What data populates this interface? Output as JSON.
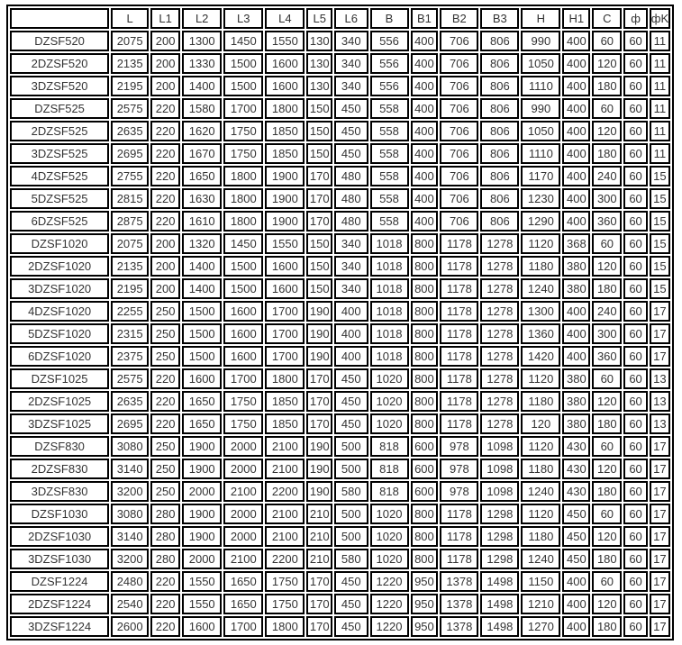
{
  "accent_colors": {
    "border": "#000000",
    "text": "#333333",
    "background": "#ffffff"
  },
  "chart_data": {
    "type": "table",
    "title": "",
    "columns": [
      "",
      "L",
      "L1",
      "L2",
      "L3",
      "L4",
      "L5",
      "L6",
      "B",
      "B1",
      "B2",
      "B3",
      "H",
      "H1",
      "C",
      "ф",
      "фK"
    ],
    "rows": [
      [
        "DZSF520",
        "2075",
        "200",
        "1300",
        "1450",
        "1550",
        "130",
        "340",
        "556",
        "400",
        "706",
        "806",
        "990",
        "400",
        "60",
        "60",
        "11"
      ],
      [
        "2DZSF520",
        "2135",
        "200",
        "1330",
        "1500",
        "1600",
        "130",
        "340",
        "556",
        "400",
        "706",
        "806",
        "1050",
        "400",
        "120",
        "60",
        "11"
      ],
      [
        "3DZSF520",
        "2195",
        "200",
        "1400",
        "1500",
        "1600",
        "130",
        "340",
        "556",
        "400",
        "706",
        "806",
        "1110",
        "400",
        "180",
        "60",
        "11"
      ],
      [
        "DZSF525",
        "2575",
        "220",
        "1580",
        "1700",
        "1800",
        "150",
        "450",
        "558",
        "400",
        "706",
        "806",
        "990",
        "400",
        "60",
        "60",
        "11"
      ],
      [
        "2DZSF525",
        "2635",
        "220",
        "1620",
        "1750",
        "1850",
        "150",
        "450",
        "558",
        "400",
        "706",
        "806",
        "1050",
        "400",
        "120",
        "60",
        "11"
      ],
      [
        "3DZSF525",
        "2695",
        "220",
        "1670",
        "1750",
        "1850",
        "150",
        "450",
        "558",
        "400",
        "706",
        "806",
        "1110",
        "400",
        "180",
        "60",
        "11"
      ],
      [
        "4DZSF525",
        "2755",
        "220",
        "1650",
        "1800",
        "1900",
        "170",
        "480",
        "558",
        "400",
        "706",
        "806",
        "1170",
        "400",
        "240",
        "60",
        "15"
      ],
      [
        "5DZSF525",
        "2815",
        "220",
        "1630",
        "1800",
        "1900",
        "170",
        "480",
        "558",
        "400",
        "706",
        "806",
        "1230",
        "400",
        "300",
        "60",
        "15"
      ],
      [
        "6DZSF525",
        "2875",
        "220",
        "1610",
        "1800",
        "1900",
        "170",
        "480",
        "558",
        "400",
        "706",
        "806",
        "1290",
        "400",
        "360",
        "60",
        "15"
      ],
      [
        "DZSF1020",
        "2075",
        "200",
        "1320",
        "1450",
        "1550",
        "150",
        "340",
        "1018",
        "800",
        "1178",
        "1278",
        "1120",
        "368",
        "60",
        "60",
        "15"
      ],
      [
        "2DZSF1020",
        "2135",
        "200",
        "1400",
        "1500",
        "1600",
        "150",
        "340",
        "1018",
        "800",
        "1178",
        "1278",
        "1180",
        "380",
        "120",
        "60",
        "15"
      ],
      [
        "3DZSF1020",
        "2195",
        "200",
        "1400",
        "1500",
        "1600",
        "150",
        "340",
        "1018",
        "800",
        "1178",
        "1278",
        "1240",
        "380",
        "180",
        "60",
        "15"
      ],
      [
        "4DZSF1020",
        "2255",
        "250",
        "1500",
        "1600",
        "1700",
        "190",
        "400",
        "1018",
        "800",
        "1178",
        "1278",
        "1300",
        "400",
        "240",
        "60",
        "17"
      ],
      [
        "5DZSF1020",
        "2315",
        "250",
        "1500",
        "1600",
        "1700",
        "190",
        "400",
        "1018",
        "800",
        "1178",
        "1278",
        "1360",
        "400",
        "300",
        "60",
        "17"
      ],
      [
        "6DZSF1020",
        "2375",
        "250",
        "1500",
        "1600",
        "1700",
        "190",
        "400",
        "1018",
        "800",
        "1178",
        "1278",
        "1420",
        "400",
        "360",
        "60",
        "17"
      ],
      [
        "DZSF1025",
        "2575",
        "220",
        "1600",
        "1700",
        "1800",
        "170",
        "450",
        "1020",
        "800",
        "1178",
        "1278",
        "1120",
        "380",
        "60",
        "60",
        "13"
      ],
      [
        "2DZSF1025",
        "2635",
        "220",
        "1650",
        "1750",
        "1850",
        "170",
        "450",
        "1020",
        "800",
        "1178",
        "1278",
        "1180",
        "380",
        "120",
        "60",
        "13"
      ],
      [
        "3DZSF1025",
        "2695",
        "220",
        "1650",
        "1750",
        "1850",
        "170",
        "450",
        "1020",
        "800",
        "1178",
        "1278",
        "120",
        "380",
        "180",
        "60",
        "13"
      ],
      [
        "DZSF830",
        "3080",
        "250",
        "1900",
        "2000",
        "2100",
        "190",
        "500",
        "818",
        "600",
        "978",
        "1098",
        "1120",
        "430",
        "60",
        "60",
        "17"
      ],
      [
        "2DZSF830",
        "3140",
        "250",
        "1900",
        "2000",
        "2100",
        "190",
        "500",
        "818",
        "600",
        "978",
        "1098",
        "1180",
        "430",
        "120",
        "60",
        "17"
      ],
      [
        "3DZSF830",
        "3200",
        "250",
        "2000",
        "2100",
        "2200",
        "190",
        "580",
        "818",
        "600",
        "978",
        "1098",
        "1240",
        "430",
        "180",
        "60",
        "17"
      ],
      [
        "DZSF1030",
        "3080",
        "280",
        "1900",
        "2000",
        "2100",
        "210",
        "500",
        "1020",
        "800",
        "1178",
        "1298",
        "1120",
        "450",
        "60",
        "60",
        "17"
      ],
      [
        "2DZSF1030",
        "3140",
        "280",
        "1900",
        "2000",
        "2100",
        "210",
        "500",
        "1020",
        "800",
        "1178",
        "1298",
        "1180",
        "450",
        "120",
        "60",
        "17"
      ],
      [
        "3DZSF1030",
        "3200",
        "280",
        "2000",
        "2100",
        "2200",
        "210",
        "580",
        "1020",
        "800",
        "1178",
        "1298",
        "1240",
        "450",
        "180",
        "60",
        "17"
      ],
      [
        "DZSF1224",
        "2480",
        "220",
        "1550",
        "1650",
        "1750",
        "170",
        "450",
        "1220",
        "950",
        "1378",
        "1498",
        "1150",
        "400",
        "60",
        "60",
        "17"
      ],
      [
        "2DZSF1224",
        "2540",
        "220",
        "1550",
        "1650",
        "1750",
        "170",
        "450",
        "1220",
        "950",
        "1378",
        "1498",
        "1210",
        "400",
        "120",
        "60",
        "17"
      ],
      [
        "3DZSF1224",
        "2600",
        "220",
        "1600",
        "1700",
        "1800",
        "170",
        "450",
        "1220",
        "950",
        "1378",
        "1498",
        "1270",
        "400",
        "180",
        "60",
        "17"
      ]
    ]
  }
}
